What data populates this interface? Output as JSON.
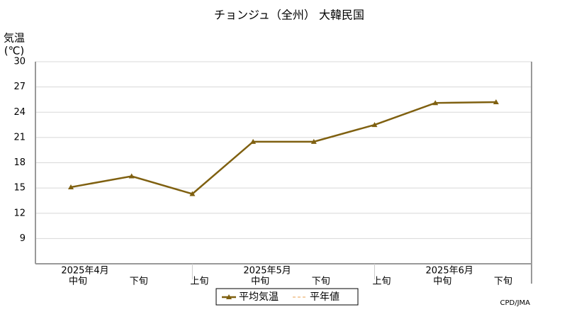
{
  "chart_data": {
    "type": "line",
    "title": "チョンジュ（全州） 大韓民国",
    "y_label": "気温",
    "y_unit": "(℃)",
    "source": "CPD/JMA",
    "categories": [
      "中旬",
      "下旬",
      "上旬",
      "中旬",
      "下旬",
      "上旬",
      "中旬",
      "下旬"
    ],
    "month_labels": [
      "2025年4月",
      null,
      null,
      "2025年5月",
      null,
      null,
      "2025年6月",
      null
    ],
    "series": [
      {
        "name": "平均気温",
        "color": "#7f6010",
        "values": [
          15.1,
          16.4,
          14.3,
          20.5,
          20.5,
          22.5,
          25.1,
          25.2
        ]
      },
      {
        "name": "平年値",
        "color": "#e8a050",
        "dashed": true,
        "values": [
          null,
          null,
          null,
          null,
          null,
          null,
          null,
          null
        ]
      }
    ],
    "ylim": [
      6,
      30
    ],
    "yticks": [
      9,
      12,
      15,
      18,
      21,
      24,
      27,
      30
    ],
    "grid": true
  }
}
